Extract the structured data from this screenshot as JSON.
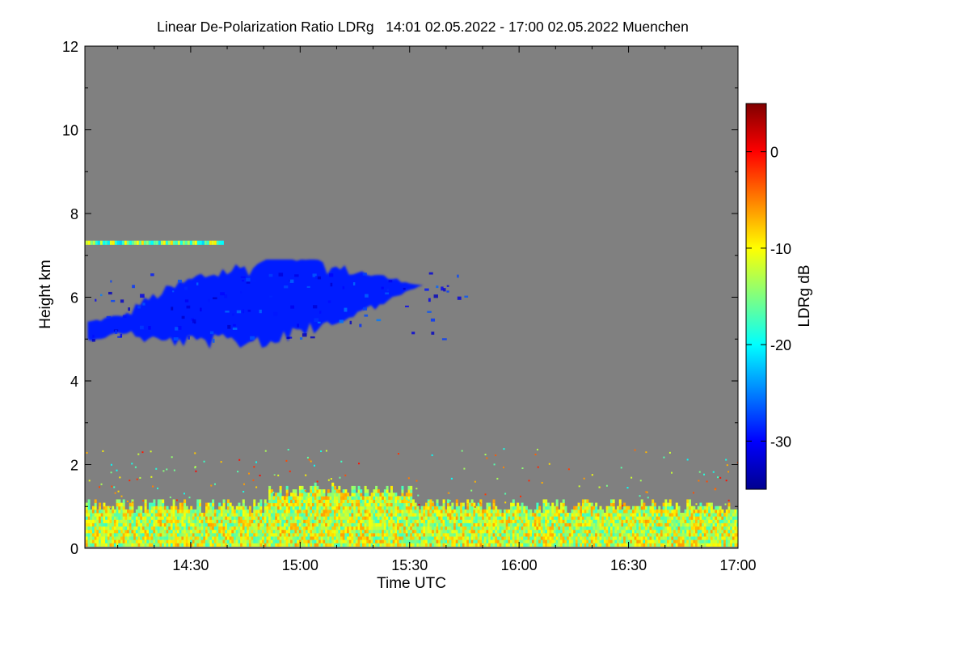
{
  "chart_data": {
    "type": "heatmap",
    "title": "Linear De-Polarization Ratio LDRg   14:01 02.05.2022 - 17:00 02.05.2022 Muenchen",
    "xlabel": "Time UTC",
    "ylabel": "Height km",
    "colorbar_label": "LDRg dB",
    "xlim": [
      14.0167,
      17.0
    ],
    "ylim": [
      0,
      12
    ],
    "x_ticks": [
      {
        "value": 14.5,
        "label": "14:30"
      },
      {
        "value": 15.0,
        "label": "15:00"
      },
      {
        "value": 15.5,
        "label": "15:30"
      },
      {
        "value": 16.0,
        "label": "16:00"
      },
      {
        "value": 16.5,
        "label": "16:30"
      },
      {
        "value": 17.0,
        "label": "17:00"
      }
    ],
    "y_ticks": [
      {
        "value": 0,
        "label": "0"
      },
      {
        "value": 2,
        "label": "2"
      },
      {
        "value": 4,
        "label": "4"
      },
      {
        "value": 6,
        "label": "6"
      },
      {
        "value": 8,
        "label": "8"
      },
      {
        "value": 10,
        "label": "10"
      },
      {
        "value": 12,
        "label": "12"
      }
    ],
    "colorbar_range": [
      -35,
      5
    ],
    "colorbar_ticks": [
      {
        "value": 0,
        "label": "0"
      },
      {
        "value": -10,
        "label": "-10"
      },
      {
        "value": -20,
        "label": "-20"
      },
      {
        "value": -30,
        "label": "-30"
      }
    ],
    "colormap": [
      "#00008f",
      "#0000ff",
      "#0080ff",
      "#00ffff",
      "#80ff80",
      "#ffff00",
      "#ff8000",
      "#ff0000",
      "#800000"
    ],
    "no_data_color": "#808080",
    "features": [
      {
        "name": "cirrus-layer",
        "time_start": 14.03,
        "time_end": 15.78,
        "height_bottom": 4.6,
        "height_top": 6.9,
        "ldr_db": -29
      },
      {
        "name": "thin-layer-7.3km",
        "time_start": 14.02,
        "time_end": 14.65,
        "height_bottom": 7.25,
        "height_top": 7.35,
        "ldr_db": -18
      },
      {
        "name": "boundary-layer",
        "time_start": 14.02,
        "time_end": 17.0,
        "height_bottom": 0.0,
        "height_top": 1.1,
        "ldr_db": -12
      }
    ]
  }
}
